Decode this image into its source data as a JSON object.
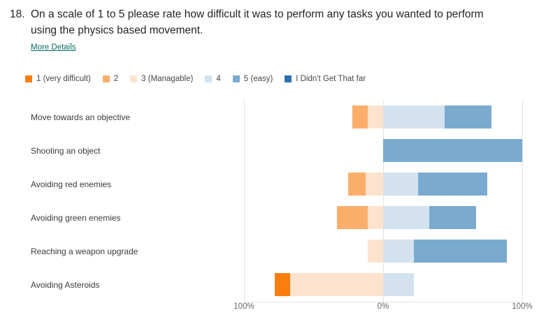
{
  "header": {
    "number": "18.",
    "question": "On a scale of 1 to 5 please rate how difficult it was to perform any tasks you wanted to perform using the physics based movement.",
    "more_details_label": "More Details"
  },
  "colors": {
    "accent_link": "#0a6a64",
    "gridline": "#e3e3e3",
    "axis_text": "#666666"
  },
  "legend": [
    {
      "label": "1 (very difficult)",
      "color": "#fb7d0d"
    },
    {
      "label": "2",
      "color": "#fbae6b"
    },
    {
      "label": "3 (Managable)",
      "color": "#fde3ce"
    },
    {
      "label": "4",
      "color": "#d4e2ef"
    },
    {
      "label": "5 (easy)",
      "color": "#7aabcf"
    },
    {
      "label": "I Didn't Get That far",
      "color": "#2c70ae"
    }
  ],
  "chart_data": {
    "type": "bar",
    "subtype": "diverging-stacked-bar",
    "orientation": "horizontal",
    "axis": {
      "left_label": "100%",
      "center_label": "0%",
      "right_label": "100%"
    },
    "xlim_percent": [
      -100,
      100
    ],
    "legend_position": "top",
    "grid": true,
    "negative_side_categories": [
      "1 (very difficult)",
      "2",
      "3 (Managable)"
    ],
    "positive_side_categories": [
      "4",
      "5 (easy)",
      "I Didn't Get That far"
    ],
    "categories": [
      "Move towards an objective",
      "Shooting an object",
      "Avoiding red enemies",
      "Avoiding green enemies",
      "Reaching a weapon upgrade",
      "Avoiding Asteroids"
    ],
    "series": [
      {
        "name": "1 (very difficult)",
        "values": [
          0,
          0,
          0,
          0,
          0,
          11.1
        ]
      },
      {
        "name": "2",
        "values": [
          11.1,
          0,
          12.5,
          22.2,
          0,
          0
        ]
      },
      {
        "name": "3 (Managable)",
        "values": [
          11.1,
          0,
          12.5,
          11.1,
          11.1,
          66.7
        ]
      },
      {
        "name": "4",
        "values": [
          44.4,
          0,
          25.0,
          33.3,
          22.2,
          22.2
        ]
      },
      {
        "name": "5 (easy)",
        "values": [
          33.3,
          100.0,
          50.0,
          33.3,
          66.7,
          0
        ]
      },
      {
        "name": "I Didn't Get That far",
        "values": [
          0,
          0,
          0,
          0,
          0,
          0
        ]
      }
    ]
  }
}
